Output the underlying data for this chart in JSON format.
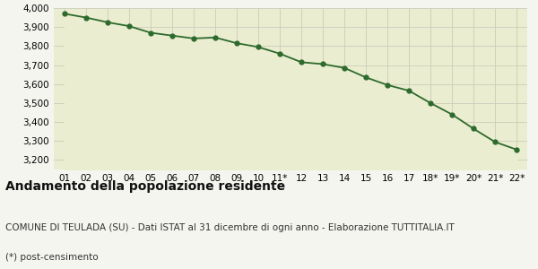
{
  "x_labels": [
    "01",
    "02",
    "03",
    "04",
    "05",
    "06",
    "07",
    "08",
    "09",
    "10",
    "11*",
    "12",
    "13",
    "14",
    "15",
    "16",
    "17",
    "18*",
    "19*",
    "20*",
    "21*",
    "22*"
  ],
  "y_values": [
    3970,
    3950,
    3925,
    3905,
    3870,
    3855,
    3840,
    3845,
    3815,
    3795,
    3760,
    3715,
    3705,
    3685,
    3635,
    3595,
    3565,
    3500,
    3440,
    3365,
    3295,
    3255
  ],
  "line_color": "#2d6a2d",
  "fill_color": "#eaedcf",
  "marker_color": "#2d6a2d",
  "bg_color": "#f5f5f0",
  "grid_color": "#ccccbb",
  "ylim_min": 3150,
  "ylim_max": 4000,
  "yticks": [
    3200,
    3300,
    3400,
    3500,
    3600,
    3700,
    3800,
    3900,
    4000
  ],
  "title": "Andamento della popolazione residente",
  "subtitle": "COMUNE DI TEULADA (SU) - Dati ISTAT al 31 dicembre di ogni anno - Elaborazione TUTTITALIA.IT",
  "footnote": "(*) post-censimento",
  "title_fontsize": 10,
  "subtitle_fontsize": 7.5,
  "footnote_fontsize": 7.5,
  "tick_fontsize": 7.5
}
